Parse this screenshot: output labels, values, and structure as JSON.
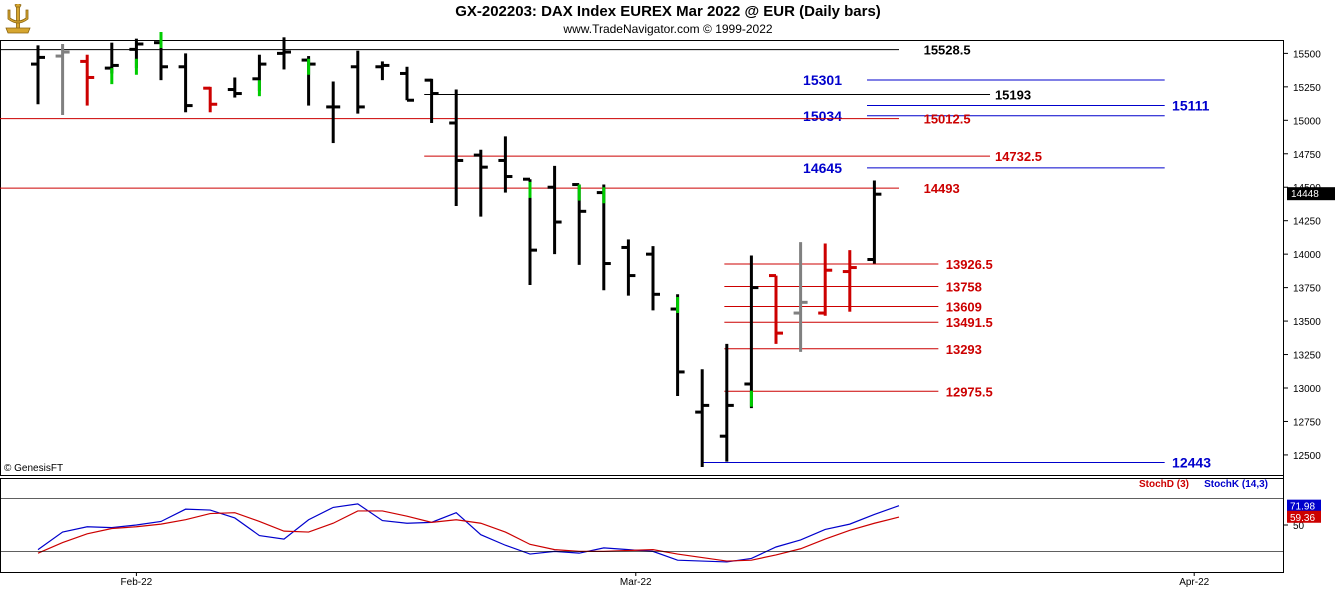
{
  "header": {
    "title": "GX-202203:  DAX Index EUREX Mar 2022 @ EUR  (Daily bars)",
    "subtitle": "www.TradeNavigator.com © 1999-2022",
    "copyright": "© GenesisFT",
    "logo_icon": "trident-logo-icon"
  },
  "colors": {
    "up_bar": "#000000",
    "down_bar": "#ff0000",
    "neutral_bar": "#808080",
    "green_tick": "#00cc00",
    "blue_line": "#0000cc",
    "red_line": "#cc0000",
    "black_line": "#000000"
  },
  "chart_data": [
    {
      "type": "ohlc",
      "title": "GX-202203:  DAX Index EUREX Mar 2022 @ EUR  (Daily bars)",
      "y_axis_side": "right",
      "ylim": [
        12350,
        15600
      ],
      "yticks": [
        "15500",
        "15250",
        "15000",
        "14750",
        "14500",
        "14250",
        "14000",
        "13750",
        "13500",
        "13250",
        "13000",
        "12750",
        "12500"
      ],
      "ytick_values": [
        15500,
        15250,
        15000,
        14750,
        14500,
        14250,
        14000,
        13750,
        13500,
        13250,
        13000,
        12750,
        12500
      ],
      "xticks": [
        "Feb-22",
        "Mar-22",
        "Apr-22"
      ],
      "xtick_bar_index": [
        4,
        24.3,
        47
      ],
      "last_price_label": "14448",
      "last_price": 14448,
      "bars": [
        {
          "o": 15420,
          "h": 15560,
          "l": 15120,
          "c": 15470,
          "color": "black"
        },
        {
          "o": 15480,
          "h": 15570,
          "l": 15040,
          "c": 15510,
          "color": "gray"
        },
        {
          "o": 15440,
          "h": 15490,
          "l": 15110,
          "c": 15320,
          "color": "red"
        },
        {
          "o": 15390,
          "h": 15580,
          "l": 15350,
          "c": 15410,
          "color": "black",
          "green": 15330
        },
        {
          "o": 15530,
          "h": 15610,
          "l": 15390,
          "c": 15570,
          "color": "black",
          "green": 15400
        },
        {
          "o": 15580,
          "h": 15620,
          "l": 15300,
          "c": 15400,
          "color": "black",
          "green": 15600
        },
        {
          "o": 15400,
          "h": 15500,
          "l": 15060,
          "c": 15110,
          "color": "black"
        },
        {
          "o": 15240,
          "h": 15250,
          "l": 15060,
          "c": 15120,
          "color": "red"
        },
        {
          "o": 15230,
          "h": 15320,
          "l": 15170,
          "c": 15200,
          "color": "black"
        },
        {
          "o": 15310,
          "h": 15490,
          "l": 15220,
          "c": 15420,
          "color": "black",
          "green": 15240
        },
        {
          "o": 15500,
          "h": 15620,
          "l": 15380,
          "c": 15510,
          "color": "black"
        },
        {
          "o": 15450,
          "h": 15480,
          "l": 15110,
          "c": 15420,
          "color": "black",
          "green": 15400
        },
        {
          "o": 15100,
          "h": 15290,
          "l": 14830,
          "c": 15100,
          "color": "black"
        },
        {
          "o": 15400,
          "h": 15520,
          "l": 15050,
          "c": 15100,
          "color": "black"
        },
        {
          "o": 15400,
          "h": 15440,
          "l": 15300,
          "c": 15410,
          "color": "black"
        },
        {
          "o": 15350,
          "h": 15400,
          "l": 15150,
          "c": 15150,
          "color": "black"
        },
        {
          "o": 15300,
          "h": 15310,
          "l": 14980,
          "c": 15200,
          "color": "black"
        },
        {
          "o": 14980,
          "h": 15230,
          "l": 14360,
          "c": 14700,
          "color": "black"
        },
        {
          "o": 14740,
          "h": 14780,
          "l": 14280,
          "c": 14650,
          "color": "black"
        },
        {
          "o": 14700,
          "h": 14880,
          "l": 14460,
          "c": 14580,
          "color": "black"
        },
        {
          "o": 14560,
          "h": 14560,
          "l": 13770,
          "c": 14030,
          "color": "black",
          "green": 14480
        },
        {
          "o": 14500,
          "h": 14660,
          "l": 14000,
          "c": 14240,
          "color": "black"
        },
        {
          "o": 14520,
          "h": 14520,
          "l": 13920,
          "c": 14320,
          "color": "black",
          "green": 14460
        },
        {
          "o": 14460,
          "h": 14520,
          "l": 13730,
          "c": 13930,
          "color": "black",
          "green": 14440
        },
        {
          "o": 14050,
          "h": 14110,
          "l": 13690,
          "c": 13840,
          "color": "black"
        },
        {
          "o": 14000,
          "h": 14060,
          "l": 13580,
          "c": 13700,
          "color": "black"
        },
        {
          "o": 13590,
          "h": 13700,
          "l": 12940,
          "c": 13120,
          "color": "black",
          "green": 13620
        },
        {
          "o": 12820,
          "h": 13140,
          "l": 12410,
          "c": 12870,
          "color": "black"
        },
        {
          "o": 12640,
          "h": 13330,
          "l": 12450,
          "c": 12870,
          "color": "black"
        },
        {
          "o": 13030,
          "h": 13990,
          "l": 12850,
          "c": 13750,
          "color": "black",
          "green": 12920
        },
        {
          "o": 13840,
          "h": 13840,
          "l": 13330,
          "c": 13410,
          "color": "red"
        },
        {
          "o": 13560,
          "h": 14090,
          "l": 13270,
          "c": 13640,
          "color": "gray"
        },
        {
          "o": 13560,
          "h": 14080,
          "l": 13540,
          "c": 13880,
          "color": "red"
        },
        {
          "o": 13870,
          "h": 14030,
          "l": 13570,
          "c": 13900,
          "color": "red"
        },
        {
          "o": 13960,
          "h": 14550,
          "l": 13930,
          "c": 14448,
          "color": "black"
        }
      ],
      "levels": [
        {
          "label": "15528.5",
          "value": 15528.5,
          "color": "black",
          "from_bar": -2,
          "to_bar": 35,
          "label_bar": 36,
          "extend": "left"
        },
        {
          "label": "15301",
          "value": 15301,
          "color": "blue",
          "from_bar": 33.7,
          "to_bar": 45.8,
          "label_bar": 31.1
        },
        {
          "label": "15193",
          "value": 15193,
          "color": "black",
          "from_bar": 15.7,
          "to_bar": 38.7,
          "label_bar": 38.9
        },
        {
          "label": "15111",
          "value": 15111,
          "color": "blue",
          "from_bar": 33.7,
          "to_bar": 45.8,
          "label_bar": 46.1
        },
        {
          "label": "15034",
          "value": 15034,
          "color": "blue",
          "from_bar": 33.7,
          "to_bar": 45.8,
          "label_bar": 31.1
        },
        {
          "label": "15012.5",
          "value": 15012.5,
          "color": "red",
          "from_bar": -2,
          "to_bar": 35,
          "label_bar": 36,
          "extend": "left"
        },
        {
          "label": "14732.5",
          "value": 14732.5,
          "color": "red",
          "from_bar": 15.7,
          "to_bar": 38.7,
          "label_bar": 38.9
        },
        {
          "label": "14645",
          "value": 14645,
          "color": "blue",
          "from_bar": 33.7,
          "to_bar": 45.8,
          "label_bar": 31.1
        },
        {
          "label": "14493",
          "value": 14493,
          "color": "red",
          "from_bar": -2,
          "to_bar": 35,
          "label_bar": 36,
          "extend": "left"
        },
        {
          "label": "13926.5",
          "value": 13926.5,
          "color": "red",
          "from_bar": 27.9,
          "to_bar": 36.6,
          "label_bar": 36.9
        },
        {
          "label": "13758",
          "value": 13758,
          "color": "red",
          "from_bar": 27.9,
          "to_bar": 36.6,
          "label_bar": 36.9
        },
        {
          "label": "13609",
          "value": 13609,
          "color": "red",
          "from_bar": 27.9,
          "to_bar": 36.6,
          "label_bar": 36.9
        },
        {
          "label": "13491.5",
          "value": 13491.5,
          "color": "red",
          "from_bar": 27.9,
          "to_bar": 36.6,
          "label_bar": 36.9
        },
        {
          "label": "13293",
          "value": 13293,
          "color": "red",
          "from_bar": 27.9,
          "to_bar": 36.6,
          "label_bar": 36.9
        },
        {
          "label": "12975.5",
          "value": 12975.5,
          "color": "red",
          "from_bar": 27.9,
          "to_bar": 36.6,
          "label_bar": 36.9
        },
        {
          "label": "12443",
          "value": 12443,
          "color": "blue",
          "from_bar": 27,
          "to_bar": 45.8,
          "label_bar": 46.1
        }
      ]
    },
    {
      "type": "line",
      "ylim": [
        0,
        100
      ],
      "ytick_labels": [
        "50"
      ],
      "ytick_values": [
        50
      ],
      "legend": [
        "StochD (3)",
        "StochK (14,3)"
      ],
      "legend_position": "top-right",
      "last_values": [
        {
          "label": "71.98",
          "value": 71.98,
          "color": "blue"
        },
        {
          "label": "59.36",
          "value": 59.36,
          "color": "red"
        }
      ],
      "series": [
        {
          "name": "StochK (14,3)",
          "color": "blue",
          "values": [
            22,
            42,
            48,
            47,
            50,
            54,
            68,
            67,
            58,
            38,
            34,
            56,
            70,
            74,
            55,
            52,
            53,
            64,
            39,
            27,
            17,
            20,
            18,
            24,
            22,
            20,
            10,
            9,
            8,
            12,
            25,
            33,
            45,
            51,
            62,
            72
          ]
        },
        {
          "name": "StochD (3)",
          "color": "red",
          "values": [
            18,
            30,
            40,
            46,
            48,
            51,
            56,
            63,
            64,
            54,
            43,
            42,
            52,
            66,
            66,
            60,
            53,
            56,
            52,
            42,
            28,
            22,
            20,
            20,
            21,
            22,
            17,
            13,
            9,
            10,
            16,
            23,
            34,
            44,
            52,
            59
          ]
        }
      ]
    }
  ]
}
